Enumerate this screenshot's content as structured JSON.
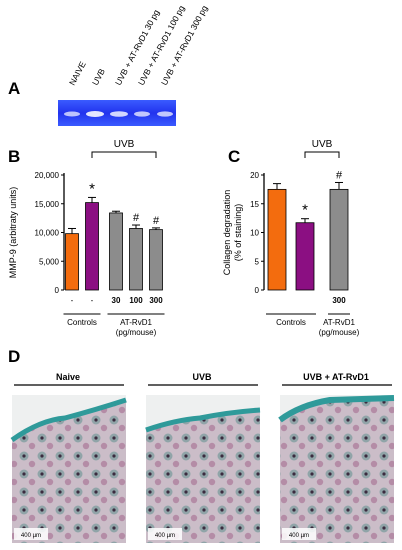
{
  "panels": {
    "A": {
      "letter": "A",
      "lanes": [
        "NAIVE",
        "UVB",
        "UVB + AT-RvD1 30 pg",
        "UVB + AT-RvD1 100 pg",
        "UVB + AT-RvD1 300 pg"
      ]
    },
    "D": {
      "letter": "D",
      "groups": [
        "Naive",
        "UVB",
        "UVB + AT-RvD1"
      ],
      "scale_label": "400 µm"
    }
  },
  "chart_data": [
    {
      "panel": "B",
      "type": "bar",
      "ylabel": "MMP-9 (arbitraty units)",
      "ylim": [
        0,
        20000
      ],
      "yticks": [
        "0",
        "5,000",
        "10,000",
        "15,000",
        "20,000"
      ],
      "bracket_label": "UVB",
      "groups_label": [
        "Controls",
        "AT-RvD1",
        "(pg/mouse)"
      ],
      "bars": [
        {
          "tick": "-",
          "value": 9800,
          "err": 900,
          "color": "#f36c0e",
          "mark": ""
        },
        {
          "tick": "-",
          "value": 15200,
          "err": 900,
          "color": "#8b0f82",
          "mark": "*"
        },
        {
          "tick": "30",
          "value": 13400,
          "err": 300,
          "color": "#8c8c8c",
          "mark": ""
        },
        {
          "tick": "100",
          "value": 10700,
          "err": 600,
          "color": "#8c8c8c",
          "mark": "#"
        },
        {
          "tick": "300",
          "value": 10500,
          "err": 300,
          "color": "#8c8c8c",
          "mark": "#"
        }
      ]
    },
    {
      "panel": "C",
      "type": "bar",
      "ylabel": "Collagen degradation (% of staining)",
      "ylim": [
        0,
        20
      ],
      "yticks": [
        "0",
        "5",
        "10",
        "15",
        "20"
      ],
      "bracket_label": "UVB",
      "groups_label": [
        "Controls",
        "AT-RvD1",
        "(pg/mouse)"
      ],
      "bars": [
        {
          "tick": "",
          "value": 17.5,
          "err": 1.0,
          "color": "#f36c0e",
          "mark": ""
        },
        {
          "tick": "",
          "value": 11.7,
          "err": 0.7,
          "color": "#8b0f82",
          "mark": "*"
        },
        {
          "tick": "300",
          "value": 17.5,
          "err": 1.2,
          "color": "#8c8c8c",
          "mark": "#"
        }
      ]
    }
  ]
}
